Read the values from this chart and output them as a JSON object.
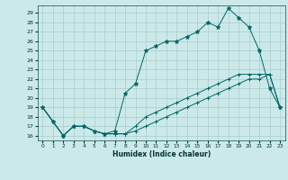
{
  "title": "",
  "xlabel": "Humidex (Indice chaleur)",
  "bg_color": "#cce9e9",
  "line_color": "#006666",
  "grid_color": "#aacccc",
  "xlim": [
    -0.5,
    23.5
  ],
  "ylim": [
    15.5,
    29.8
  ],
  "xticks": [
    0,
    1,
    2,
    3,
    4,
    5,
    6,
    7,
    8,
    9,
    10,
    11,
    12,
    13,
    14,
    15,
    16,
    17,
    18,
    19,
    20,
    21,
    22,
    23
  ],
  "yticks": [
    16,
    17,
    18,
    19,
    20,
    21,
    22,
    23,
    24,
    25,
    26,
    27,
    28,
    29
  ],
  "line1_x": [
    0,
    1,
    2,
    3,
    4,
    5,
    6,
    7,
    8,
    9,
    10,
    11,
    12,
    13,
    14,
    15,
    16,
    17,
    18,
    19,
    20,
    21,
    22,
    23
  ],
  "line1_y": [
    19,
    17.5,
    16,
    17,
    17,
    16.5,
    16.2,
    16.2,
    16.2,
    17,
    18,
    18.5,
    19,
    19.5,
    20,
    20.5,
    21,
    21.5,
    22,
    22.5,
    22.5,
    22.5,
    22.5,
    19
  ],
  "line2_x": [
    0,
    1,
    2,
    3,
    4,
    5,
    6,
    7,
    8,
    9,
    10,
    11,
    12,
    13,
    14,
    15,
    16,
    17,
    18,
    19,
    20,
    21,
    22,
    23
  ],
  "line2_y": [
    19,
    17.5,
    16,
    17,
    17,
    16.5,
    16.2,
    16.5,
    20.5,
    21.5,
    25,
    25.5,
    26,
    26,
    26.5,
    27,
    28,
    27.5,
    29.5,
    28.5,
    27.5,
    25,
    21,
    19
  ],
  "line3_x": [
    0,
    1,
    2,
    3,
    4,
    5,
    6,
    7,
    8,
    9,
    10,
    11,
    12,
    13,
    14,
    15,
    16,
    17,
    18,
    19,
    20,
    21,
    22,
    23
  ],
  "line3_y": [
    19,
    17.5,
    16,
    17,
    17,
    16.5,
    16.2,
    16.2,
    16.2,
    16.5,
    17,
    17.5,
    18,
    18.5,
    19,
    19.5,
    20,
    20.5,
    21,
    21.5,
    22,
    22,
    22.5,
    19
  ]
}
